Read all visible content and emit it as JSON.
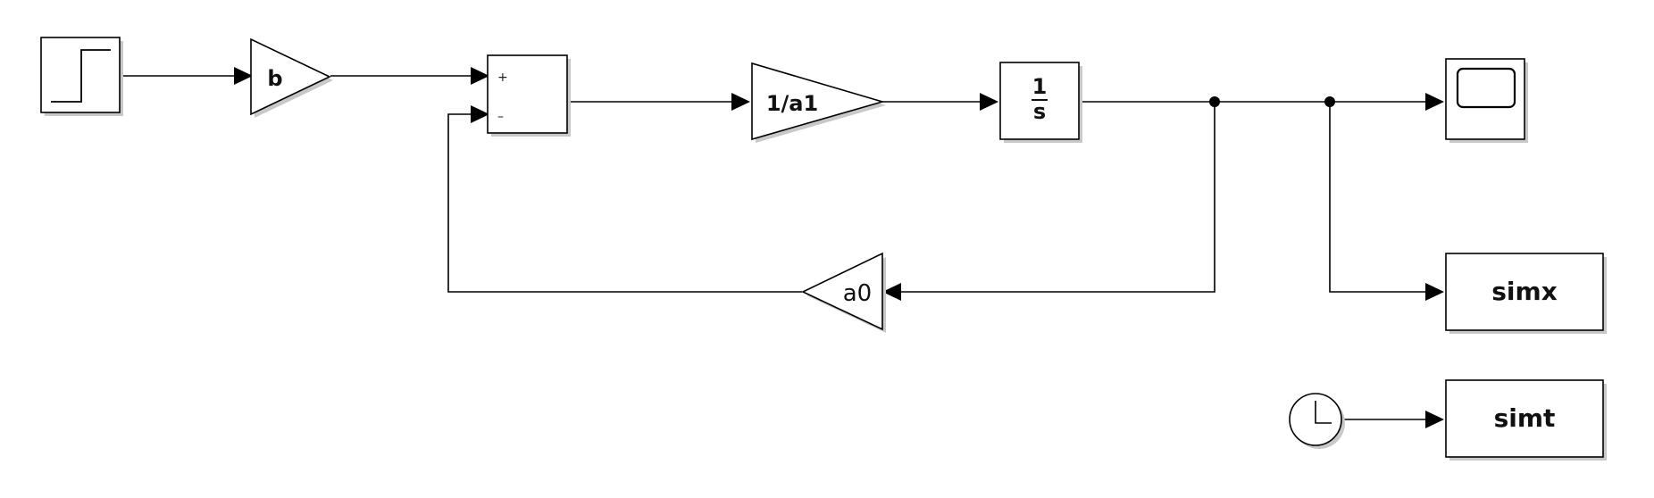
{
  "blocks": {
    "step": {
      "label": ""
    },
    "gain_b": {
      "label": "b"
    },
    "sum": {
      "plus": "+",
      "minus": "–"
    },
    "gain_1_a1": {
      "label": "1/a1"
    },
    "integrator": {
      "numerator": "1",
      "denominator": "s"
    },
    "gain_a0": {
      "label": "a0"
    },
    "scope": {
      "label": ""
    },
    "to_workspace_x": {
      "label": "simx"
    },
    "to_workspace_t": {
      "label": "simt"
    },
    "clock": {
      "label": ""
    }
  },
  "colors": {
    "line": "#000000",
    "block_fill": "#ffffff",
    "block_shadow": "#c8c8c8",
    "background": "#ffffff"
  },
  "icons": [
    "step-icon",
    "scope-icon",
    "clock-icon"
  ]
}
